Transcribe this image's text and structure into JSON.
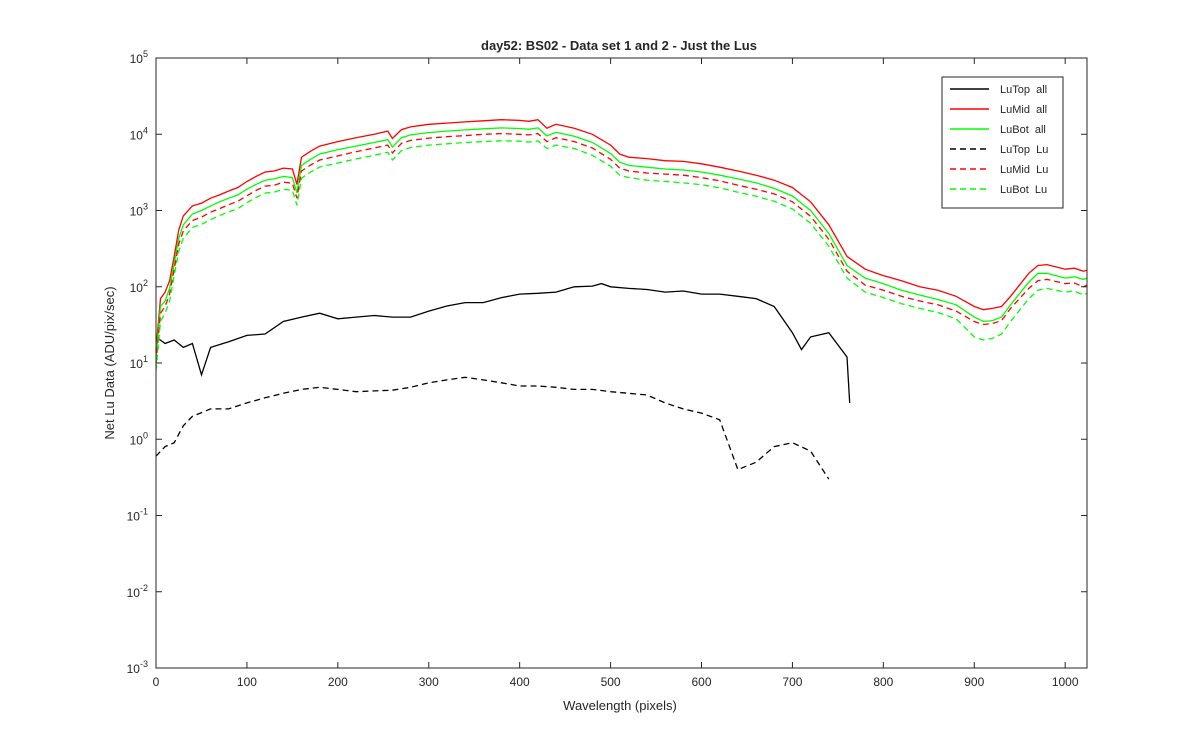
{
  "chart_data": {
    "type": "line",
    "title": "day52: BS02 - Data set 1 and 2 - Just the Lus",
    "xlabel": "Wavelength (pixels)",
    "ylabel": "Net Lu Data (ADU/pix/sec)",
    "xlim": [
      0,
      1024
    ],
    "ylim": [
      0.001,
      100000
    ],
    "yscale": "log",
    "grid": false,
    "legend_position": "top-right",
    "xticks": [
      0,
      100,
      200,
      300,
      400,
      500,
      600,
      700,
      800,
      900,
      1000
    ],
    "yticks": [
      {
        "value": 0.001,
        "base": "10",
        "exp": "-3"
      },
      {
        "value": 0.01,
        "base": "10",
        "exp": "-2"
      },
      {
        "value": 0.1,
        "base": "10",
        "exp": "-1"
      },
      {
        "value": 1,
        "base": "10",
        "exp": "0"
      },
      {
        "value": 10,
        "base": "10",
        "exp": "1"
      },
      {
        "value": 100,
        "base": "10",
        "exp": "2"
      },
      {
        "value": 1000,
        "base": "10",
        "exp": "3"
      },
      {
        "value": 10000,
        "base": "10",
        "exp": "4"
      },
      {
        "value": 100000,
        "base": "10",
        "exp": "5"
      }
    ],
    "series": [
      {
        "name": "LuTop  all",
        "color": "#000000",
        "dashed": false,
        "x": [
          0,
          10,
          20,
          30,
          40,
          50,
          60,
          80,
          100,
          120,
          140,
          160,
          180,
          200,
          220,
          240,
          260,
          280,
          300,
          320,
          340,
          360,
          380,
          400,
          420,
          440,
          460,
          480,
          490,
          500,
          520,
          540,
          560,
          580,
          600,
          620,
          640,
          660,
          680,
          700,
          710,
          720,
          740,
          760,
          763
        ],
        "y": [
          22,
          18,
          20,
          16,
          18,
          7,
          16,
          19,
          23,
          24,
          35,
          40,
          45,
          38,
          40,
          42,
          40,
          40,
          48,
          56,
          62,
          62,
          72,
          80,
          82,
          85,
          100,
          102,
          110,
          100,
          95,
          92,
          85,
          88,
          80,
          80,
          75,
          70,
          55,
          25,
          15,
          22,
          25,
          12,
          3
        ]
      },
      {
        "name": "LuMid  all",
        "color": "#ff0000",
        "dashed": false,
        "x": [
          0,
          5,
          10,
          15,
          20,
          25,
          30,
          40,
          50,
          60,
          70,
          80,
          90,
          100,
          110,
          120,
          130,
          140,
          150,
          155,
          160,
          170,
          180,
          200,
          220,
          240,
          255,
          260,
          270,
          280,
          300,
          320,
          340,
          360,
          380,
          400,
          410,
          420,
          430,
          440,
          460,
          480,
          500,
          510,
          520,
          540,
          560,
          580,
          600,
          620,
          640,
          660,
          680,
          700,
          720,
          740,
          760,
          780,
          800,
          820,
          840,
          860,
          880,
          900,
          910,
          920,
          930,
          940,
          960,
          970,
          980,
          1000,
          1010,
          1020,
          1024
        ],
        "y": [
          15,
          70,
          85,
          120,
          250,
          550,
          850,
          1150,
          1250,
          1450,
          1600,
          1800,
          2000,
          2400,
          2800,
          3200,
          3300,
          3600,
          3500,
          2200,
          5000,
          6000,
          7000,
          8000,
          9000,
          10000,
          11000,
          8800,
          11500,
          12500,
          13500,
          14000,
          14500,
          15000,
          15500,
          15200,
          14800,
          15500,
          12000,
          13500,
          12000,
          10000,
          7200,
          5500,
          5000,
          4800,
          4500,
          4400,
          4100,
          3700,
          3300,
          2900,
          2500,
          2000,
          1300,
          650,
          250,
          170,
          140,
          120,
          100,
          90,
          75,
          55,
          50,
          52,
          55,
          75,
          150,
          190,
          195,
          170,
          175,
          160,
          165
        ]
      },
      {
        "name": "LuBot  all",
        "color": "#00ff00",
        "dashed": false,
        "x": [
          0,
          5,
          10,
          15,
          20,
          25,
          30,
          40,
          50,
          60,
          70,
          80,
          90,
          100,
          110,
          120,
          130,
          140,
          150,
          155,
          160,
          170,
          180,
          200,
          220,
          240,
          255,
          260,
          270,
          280,
          300,
          320,
          340,
          360,
          380,
          400,
          410,
          420,
          430,
          440,
          460,
          480,
          500,
          510,
          520,
          540,
          560,
          580,
          600,
          620,
          640,
          660,
          680,
          700,
          720,
          740,
          760,
          780,
          800,
          820,
          840,
          860,
          880,
          900,
          910,
          920,
          930,
          940,
          960,
          970,
          980,
          1000,
          1010,
          1020,
          1024
        ],
        "y": [
          12,
          55,
          65,
          95,
          200,
          430,
          650,
          900,
          1000,
          1150,
          1300,
          1450,
          1600,
          1900,
          2200,
          2500,
          2600,
          2800,
          2700,
          1700,
          3900,
          4700,
          5500,
          6300,
          7000,
          7800,
          8500,
          6800,
          9000,
          9800,
          10500,
          11000,
          11400,
          11800,
          12100,
          11900,
          11600,
          12100,
          9500,
          10600,
          9400,
          7800,
          5600,
          4300,
          3900,
          3700,
          3500,
          3400,
          3200,
          2900,
          2600,
          2300,
          1950,
          1550,
          1000,
          500,
          190,
          130,
          110,
          90,
          78,
          68,
          58,
          40,
          35,
          36,
          40,
          58,
          115,
          150,
          150,
          130,
          135,
          125,
          130
        ]
      },
      {
        "name": "LuTop  Lu",
        "color": "#000000",
        "dashed": true,
        "x": [
          0,
          10,
          20,
          30,
          40,
          60,
          80,
          100,
          120,
          140,
          160,
          180,
          200,
          220,
          240,
          260,
          280,
          300,
          320,
          340,
          360,
          380,
          400,
          420,
          440,
          460,
          480,
          500,
          520,
          540,
          560,
          580,
          600,
          620,
          640,
          660,
          680,
          700,
          720,
          740
        ],
        "y": [
          0.6,
          0.8,
          0.9,
          1.5,
          2.0,
          2.5,
          2.5,
          3.0,
          3.5,
          4.0,
          4.5,
          4.8,
          4.5,
          4.2,
          4.3,
          4.4,
          4.8,
          5.5,
          6.0,
          6.5,
          6.0,
          5.5,
          5.0,
          5.0,
          4.8,
          4.5,
          4.5,
          4.2,
          4.0,
          3.8,
          3.0,
          2.5,
          2.2,
          1.8,
          0.4,
          0.5,
          0.8,
          0.9,
          0.7,
          0.3
        ]
      },
      {
        "name": "LuMid  Lu",
        "color": "#ff0000",
        "dashed": true,
        "x": [
          0,
          5,
          10,
          15,
          20,
          25,
          30,
          40,
          50,
          60,
          70,
          80,
          90,
          100,
          110,
          120,
          130,
          140,
          150,
          155,
          160,
          170,
          180,
          200,
          220,
          240,
          255,
          260,
          270,
          280,
          300,
          320,
          340,
          360,
          380,
          400,
          410,
          420,
          430,
          440,
          460,
          480,
          500,
          510,
          520,
          540,
          560,
          580,
          600,
          620,
          640,
          660,
          680,
          700,
          720,
          740,
          760,
          780,
          800,
          820,
          840,
          860,
          880,
          900,
          910,
          920,
          930,
          940,
          960,
          970,
          980,
          1000,
          1010,
          1020,
          1024
        ],
        "y": [
          10,
          45,
          55,
          80,
          170,
          360,
          540,
          740,
          820,
          950,
          1060,
          1190,
          1320,
          1560,
          1830,
          2090,
          2150,
          2350,
          2280,
          1450,
          3300,
          3950,
          4600,
          5200,
          5900,
          6600,
          7200,
          5700,
          7600,
          8300,
          8900,
          9300,
          9600,
          10000,
          10200,
          10000,
          9800,
          10200,
          8000,
          9000,
          8000,
          6600,
          4700,
          3600,
          3300,
          3100,
          3000,
          2900,
          2700,
          2450,
          2150,
          1900,
          1650,
          1300,
          840,
          420,
          160,
          105,
          90,
          75,
          65,
          58,
          48,
          35,
          32,
          33,
          36,
          52,
          95,
          120,
          125,
          110,
          112,
          100,
          105
        ]
      },
      {
        "name": "LuBot  Lu",
        "color": "#00ff00",
        "dashed": true,
        "x": [
          0,
          5,
          10,
          15,
          20,
          25,
          30,
          40,
          50,
          60,
          70,
          80,
          90,
          100,
          110,
          120,
          130,
          140,
          150,
          155,
          160,
          170,
          180,
          200,
          220,
          240,
          255,
          260,
          270,
          280,
          300,
          320,
          340,
          360,
          380,
          400,
          410,
          420,
          430,
          440,
          460,
          480,
          500,
          510,
          520,
          540,
          560,
          580,
          600,
          620,
          640,
          660,
          680,
          700,
          720,
          740,
          760,
          780,
          800,
          820,
          840,
          860,
          880,
          900,
          910,
          920,
          930,
          940,
          960,
          970,
          980,
          1000,
          1010,
          1020,
          1024
        ],
        "y": [
          8,
          35,
          45,
          65,
          140,
          290,
          430,
          600,
          660,
          760,
          860,
          960,
          1060,
          1260,
          1480,
          1690,
          1740,
          1900,
          1840,
          1170,
          2650,
          3200,
          3720,
          4200,
          4750,
          5300,
          5800,
          4600,
          6100,
          6700,
          7200,
          7500,
          7800,
          8000,
          8200,
          8100,
          7900,
          8200,
          6500,
          7200,
          6500,
          5300,
          3800,
          2900,
          2700,
          2500,
          2400,
          2300,
          2180,
          1980,
          1740,
          1540,
          1320,
          1050,
          680,
          340,
          130,
          85,
          72,
          60,
          52,
          46,
          38,
          22,
          20,
          21,
          24,
          35,
          70,
          90,
          95,
          85,
          88,
          78,
          82
        ]
      }
    ]
  }
}
